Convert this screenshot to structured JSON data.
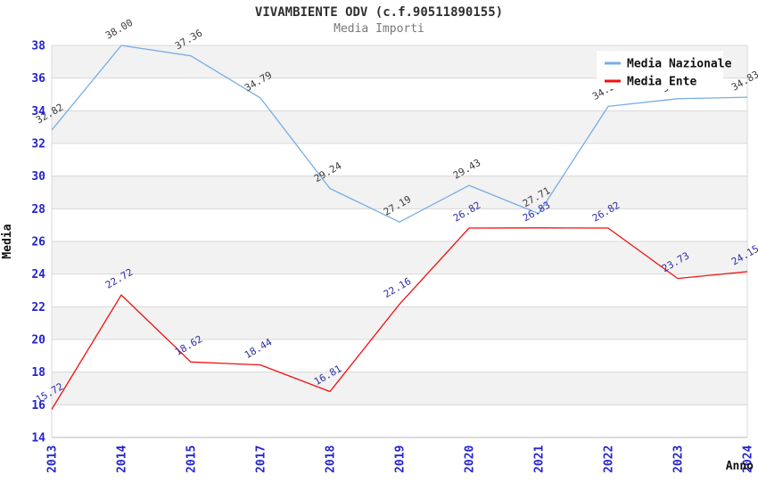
{
  "title": "VIVAMBIENTE ODV (c.f.90511890155)",
  "subtitle": "Media Importi",
  "y_axis": {
    "label": "Media",
    "ticks": [
      38,
      36,
      34,
      32,
      30,
      28,
      26,
      24,
      22,
      20,
      18,
      16,
      14
    ],
    "min": 14,
    "max": 38
  },
  "x_axis": {
    "label": "Anno",
    "ticks": [
      "2013",
      "2014",
      "2015",
      "2017",
      "2018",
      "2019",
      "2020",
      "2021",
      "2022",
      "2023",
      "2024"
    ]
  },
  "legend": {
    "position": "top-right",
    "items": [
      {
        "label": "Media Nazionale",
        "color": "#76ade3"
      },
      {
        "label": "Media Ente",
        "color": "#ef1010"
      }
    ]
  },
  "chart_data": {
    "type": "line",
    "x": [
      "2013",
      "2014",
      "2015",
      "2017",
      "2018",
      "2019",
      "2020",
      "2021",
      "2022",
      "2023",
      "2024"
    ],
    "series": [
      {
        "name": "Media Nazionale",
        "color": "#76ade3",
        "label_color": "#3c3c3c",
        "values": [
          32.82,
          38.0,
          37.36,
          34.79,
          29.24,
          27.19,
          29.43,
          27.71,
          34.27,
          34.74,
          34.83
        ],
        "point_labels": [
          "32.82",
          "38.00",
          "37.36",
          "34.79",
          "29.24",
          "27.19",
          "29.43",
          "27.71",
          "34.27",
          "34.74",
          "34.83"
        ]
      },
      {
        "name": "Media Ente",
        "color": "#ef1010",
        "label_color": "#2d2da8",
        "values": [
          15.72,
          22.72,
          18.62,
          18.44,
          16.81,
          22.16,
          26.82,
          26.83,
          26.82,
          23.73,
          24.15
        ],
        "point_labels": [
          "15.72",
          "22.72",
          "18.62",
          "18.44",
          "16.81",
          "22.16",
          "26.82",
          "26.83",
          "26.82",
          "23.73",
          "24.15"
        ]
      }
    ],
    "ylim": [
      14,
      38
    ],
    "grid": "horizontal",
    "band_fill": "alternating"
  },
  "colors": {
    "background": "#ffffff",
    "band_gray": "#f2f2f2",
    "gridline": "#d8d8d8",
    "axis_line": "#b8b8b8",
    "tick_label_blue": "#2424cc",
    "title_color": "#2f2f2f",
    "subtitle_color": "#787878",
    "axis_title_color": "#111111",
    "legend_text_color": "#111111",
    "legend_bg": "#ffffff"
  }
}
